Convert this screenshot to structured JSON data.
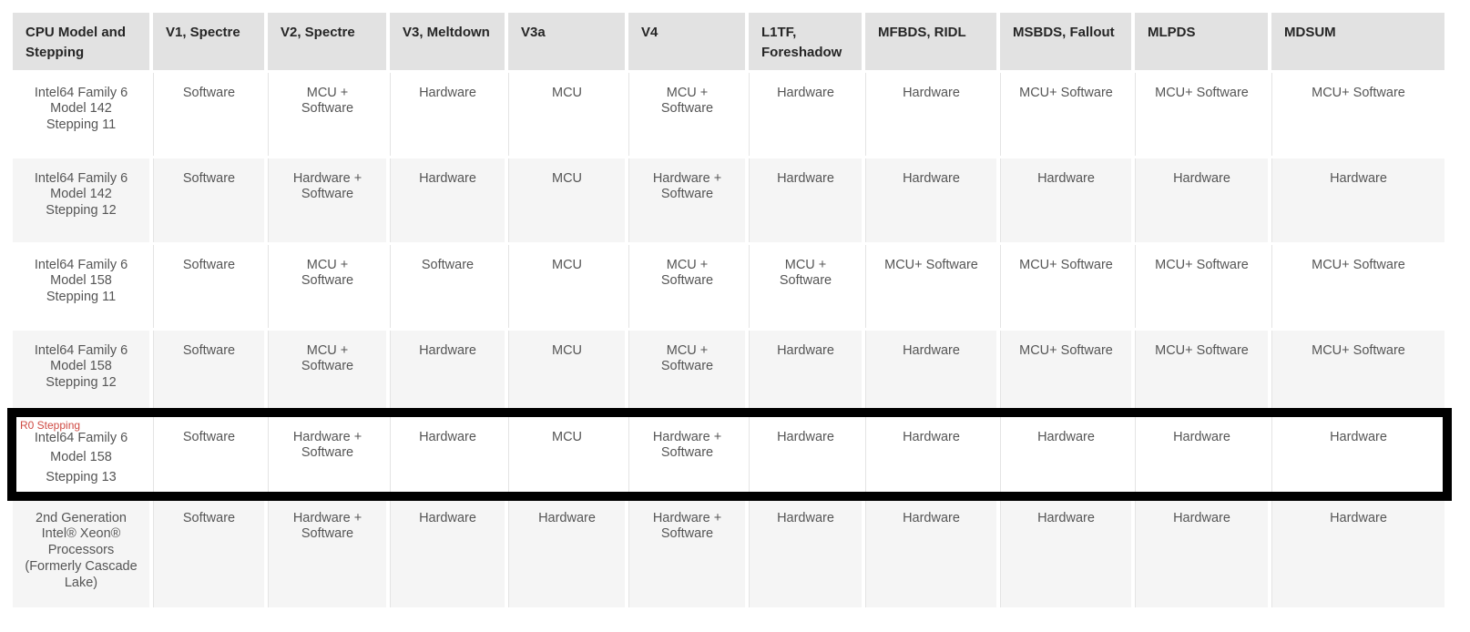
{
  "table": {
    "columns": [
      "CPU Model and\nStepping",
      "V1, Spectre",
      "V2, Spectre",
      "V3, Meltdown",
      "V3a",
      "V4",
      "L1TF,\nForeshadow",
      "MFBDS, RIDL",
      "MSBDS, Fallout",
      "MLPDS",
      "MDSUM"
    ],
    "rows": [
      {
        "model": "Intel64 Family 6\nModel 142\nStepping 11",
        "values": [
          "Software",
          "MCU +\nSoftware",
          "Hardware",
          "MCU",
          "MCU +\nSoftware",
          "Hardware",
          "Hardware",
          "MCU+ Software",
          "MCU+ Software",
          "MCU+ Software"
        ],
        "highlight": false
      },
      {
        "model": "Intel64 Family 6\nModel 142\nStepping 12",
        "values": [
          "Software",
          "Hardware +\nSoftware",
          "Hardware",
          "MCU",
          "Hardware +\nSoftware",
          "Hardware",
          "Hardware",
          "Hardware",
          "Hardware",
          "Hardware"
        ],
        "highlight": false
      },
      {
        "model": "Intel64 Family 6\nModel 158\nStepping 11",
        "values": [
          "Software",
          "MCU +\nSoftware",
          "Software",
          "MCU",
          "MCU +\nSoftware",
          "MCU +\nSoftware",
          "MCU+ Software",
          "MCU+ Software",
          "MCU+ Software",
          "MCU+ Software"
        ],
        "highlight": false
      },
      {
        "model": "Intel64 Family 6\nModel 158\nStepping 12",
        "values": [
          "Software",
          "MCU +\nSoftware",
          "Hardware",
          "MCU",
          "MCU +\nSoftware",
          "Hardware",
          "Hardware",
          "MCU+ Software",
          "MCU+ Software",
          "MCU+ Software"
        ],
        "highlight": false
      },
      {
        "model": "Intel64 Family 6\nModel 158\nStepping 13",
        "values": [
          "Software",
          "Hardware +\nSoftware",
          "Hardware",
          "MCU",
          "Hardware +\nSoftware",
          "Hardware",
          "Hardware",
          "Hardware",
          "Hardware",
          "Hardware"
        ],
        "highlight": true
      },
      {
        "model": "2nd Generation\nIntel® Xeon®\nProcessors\n(Formerly Cascade\nLake)",
        "values": [
          "Software",
          "Hardware +\nSoftware",
          "Hardware",
          "Hardware",
          "Hardware +\nSoftware",
          "Hardware",
          "Hardware",
          "Hardware",
          "Hardware",
          "Hardware"
        ],
        "highlight": false
      }
    ],
    "highlight": {
      "label": "R0 Stepping"
    }
  },
  "colors": {
    "page_background": "#ffffff",
    "header_background": "#e2e2e2",
    "alt_row_background": "#f5f5f5",
    "body_text": "#555555",
    "header_text": "#262626",
    "highlight_frame": "#000000",
    "annotation_red": "#cf4a43"
  }
}
